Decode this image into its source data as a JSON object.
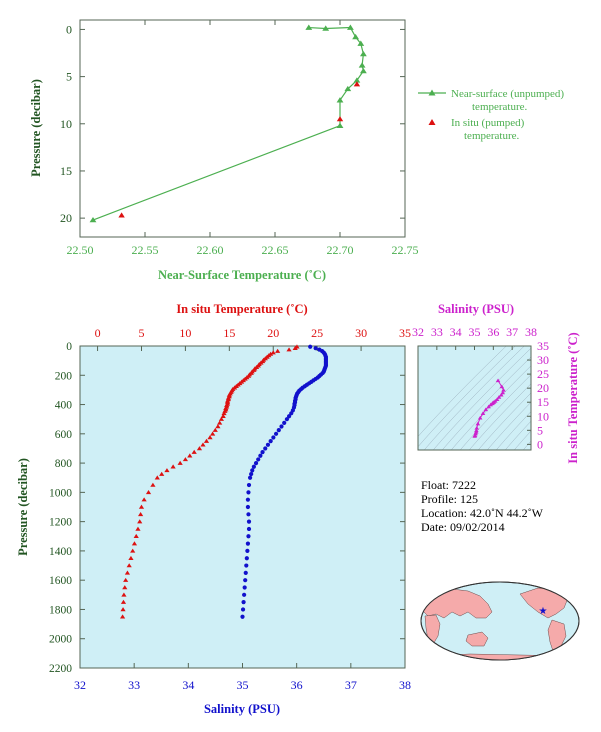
{
  "colors": {
    "green": "#4caf50",
    "red": "#dd1111",
    "blue": "#1111cc",
    "magenta": "#cc22cc",
    "dark_green": "#225522",
    "plot_bg": "#cfeff6",
    "frame": "#556655",
    "land": "#f5aaaa",
    "ocean": "#cfeff6"
  },
  "chart_data": [
    {
      "id": "near_surface",
      "type": "line",
      "xlabel": "Near-Surface Temperature (˚C)",
      "ylabel": "Pressure (decibar)",
      "xlim": [
        22.5,
        22.75
      ],
      "ylim": [
        22,
        -1
      ],
      "xticks": [
        "22.50",
        "22.55",
        "22.60",
        "22.65",
        "22.70",
        "22.75"
      ],
      "yticks": [
        "0",
        "5",
        "10",
        "15",
        "20"
      ],
      "legend": {
        "position": "right",
        "near_surface_lines": [
          "Near-surface (unpumped)",
          "temperature."
        ],
        "in_situ_lines": [
          "In situ (pumped)",
          "temperature."
        ]
      },
      "series": [
        {
          "name": "Near-surface (unpumped) temperature.",
          "marker": "triangle",
          "color": "#4caf50",
          "x": [
            22.676,
            22.689,
            22.708,
            22.712,
            22.716,
            22.718,
            22.717,
            22.718,
            22.713,
            22.706,
            22.7,
            22.7,
            22.51
          ],
          "y": [
            -0.2,
            -0.1,
            -0.2,
            0.8,
            1.5,
            2.6,
            3.8,
            4.4,
            5.4,
            6.3,
            7.5,
            10.2,
            20.2
          ]
        },
        {
          "name": "In situ (pumped) temperature.",
          "marker": "triangle",
          "color": "#dd1111",
          "x": [
            22.713,
            22.7,
            22.532
          ],
          "y": [
            5.8,
            9.5,
            19.7
          ]
        }
      ]
    },
    {
      "id": "profile",
      "type": "scatter",
      "top_axis_label": "In situ Temperature (˚C)",
      "bottom_axis_label": "Salinity (PSU)",
      "ylabel": "Pressure (decibar)",
      "temp_lim": [
        -2,
        35
      ],
      "sal_lim": [
        32,
        38
      ],
      "ylim": [
        2200,
        0
      ],
      "temp_ticks": [
        "0",
        "5",
        "10",
        "15",
        "20",
        "25",
        "30",
        "35"
      ],
      "sal_ticks": [
        "32",
        "33",
        "34",
        "35",
        "36",
        "37",
        "38"
      ],
      "pressure_ticks": [
        "0",
        "200",
        "400",
        "600",
        "800",
        "1000",
        "1200",
        "1400",
        "1600",
        "1800",
        "2000",
        "2200"
      ],
      "temperature": {
        "name": "In situ Temperature",
        "color": "#dd1111",
        "pressure": [
          5,
          15,
          25,
          35,
          45,
          55,
          65,
          75,
          85,
          95,
          105,
          115,
          125,
          135,
          145,
          155,
          165,
          175,
          185,
          195,
          205,
          215,
          225,
          235,
          245,
          255,
          265,
          275,
          285,
          295,
          305,
          315,
          325,
          335,
          345,
          355,
          365,
          375,
          385,
          395,
          405,
          415,
          425,
          435,
          445,
          460,
          480,
          500,
          525,
          550,
          575,
          600,
          625,
          650,
          675,
          700,
          725,
          750,
          775,
          800,
          825,
          850,
          875,
          900,
          950,
          1000,
          1050,
          1100,
          1150,
          1200,
          1250,
          1300,
          1350,
          1400,
          1450,
          1500,
          1550,
          1600,
          1650,
          1700,
          1750,
          1800,
          1850
        ],
        "values": [
          22.7,
          22.5,
          21.8,
          20.5,
          20.0,
          19.7,
          19.5,
          19.3,
          19.1,
          18.9,
          18.8,
          18.6,
          18.4,
          18.3,
          18.1,
          17.9,
          17.8,
          17.6,
          17.5,
          17.3,
          17.2,
          17.0,
          16.8,
          16.6,
          16.4,
          16.2,
          16.0,
          15.8,
          15.6,
          15.4,
          15.3,
          15.2,
          15.1,
          15.0,
          15.0,
          14.9,
          14.9,
          14.8,
          14.8,
          14.8,
          14.7,
          14.7,
          14.6,
          14.6,
          14.5,
          14.4,
          14.3,
          14.1,
          13.9,
          13.7,
          13.4,
          13.1,
          12.8,
          12.4,
          12.0,
          11.6,
          11.0,
          10.5,
          10.0,
          9.4,
          8.6,
          7.9,
          7.3,
          6.8,
          6.3,
          5.8,
          5.3,
          5.0,
          4.9,
          4.8,
          4.6,
          4.4,
          4.2,
          4.0,
          3.8,
          3.6,
          3.4,
          3.2,
          3.1,
          3.0,
          2.95,
          2.9,
          2.85
        ]
      },
      "salinity": {
        "name": "Salinity",
        "color": "#1111cc",
        "pressure": [
          5,
          15,
          25,
          35,
          45,
          55,
          65,
          75,
          85,
          95,
          105,
          115,
          125,
          135,
          145,
          155,
          165,
          175,
          185,
          195,
          205,
          215,
          225,
          235,
          245,
          255,
          265,
          275,
          285,
          295,
          305,
          315,
          325,
          335,
          345,
          355,
          365,
          375,
          385,
          395,
          405,
          420,
          440,
          460,
          480,
          500,
          525,
          550,
          575,
          600,
          625,
          650,
          675,
          700,
          725,
          750,
          775,
          800,
          825,
          850,
          875,
          900,
          950,
          1000,
          1050,
          1100,
          1150,
          1200,
          1250,
          1300,
          1350,
          1400,
          1450,
          1500,
          1550,
          1600,
          1650,
          1700,
          1750,
          1800,
          1850
        ],
        "values": [
          36.25,
          36.35,
          36.42,
          36.47,
          36.5,
          36.52,
          36.53,
          36.54,
          36.54,
          36.54,
          36.54,
          36.54,
          36.54,
          36.54,
          36.53,
          36.52,
          36.51,
          36.5,
          36.48,
          36.45,
          36.42,
          36.39,
          36.35,
          36.31,
          36.27,
          36.23,
          36.19,
          36.15,
          36.11,
          36.08,
          36.05,
          36.03,
          36.01,
          36.0,
          35.99,
          35.98,
          35.98,
          35.97,
          35.97,
          35.96,
          35.96,
          35.95,
          35.93,
          35.9,
          35.86,
          35.82,
          35.77,
          35.72,
          35.67,
          35.62,
          35.57,
          35.52,
          35.47,
          35.42,
          35.37,
          35.33,
          35.29,
          35.25,
          35.21,
          35.18,
          35.16,
          35.14,
          35.12,
          35.11,
          35.1,
          35.1,
          35.11,
          35.12,
          35.12,
          35.11,
          35.1,
          35.09,
          35.08,
          35.07,
          35.06,
          35.05,
          35.04,
          35.03,
          35.02,
          35.01,
          35.0
        ]
      }
    },
    {
      "id": "ts_diagram",
      "type": "scatter",
      "top_axis_label": "Salinity (PSU)",
      "right_axis_label": "In situ Temperature (˚C)",
      "xlim": [
        32,
        38
      ],
      "ylim": [
        -2,
        35
      ],
      "xticks": [
        "32",
        "33",
        "34",
        "35",
        "36",
        "37",
        "38"
      ],
      "yticks": [
        "0",
        "5",
        "10",
        "15",
        "20",
        "25",
        "30",
        "35"
      ],
      "color": "#cc22cc",
      "salinity": [
        36.25,
        36.45,
        36.54,
        36.5,
        36.42,
        36.3,
        36.2,
        36.1,
        36.03,
        35.98,
        35.94,
        35.86,
        35.75,
        35.6,
        35.45,
        35.3,
        35.18,
        35.12,
        35.1,
        35.09,
        35.06,
        35.03,
        35.01
      ],
      "temperature": [
        22.7,
        20.5,
        19.3,
        18.4,
        17.6,
        16.8,
        16.0,
        15.4,
        15.0,
        14.8,
        14.5,
        14.1,
        13.4,
        12.4,
        11.0,
        9.4,
        7.3,
        5.8,
        4.9,
        4.4,
        3.8,
        3.2,
        2.9
      ]
    }
  ],
  "float_info": {
    "float": "Float:  7222",
    "profile": "Profile:  125",
    "location": "Location:  42.0˚N  44.2˚W",
    "date": "Date:  09/02/2014"
  },
  "map": {
    "icon": "world-map-icon",
    "marker": "float-location-star"
  }
}
